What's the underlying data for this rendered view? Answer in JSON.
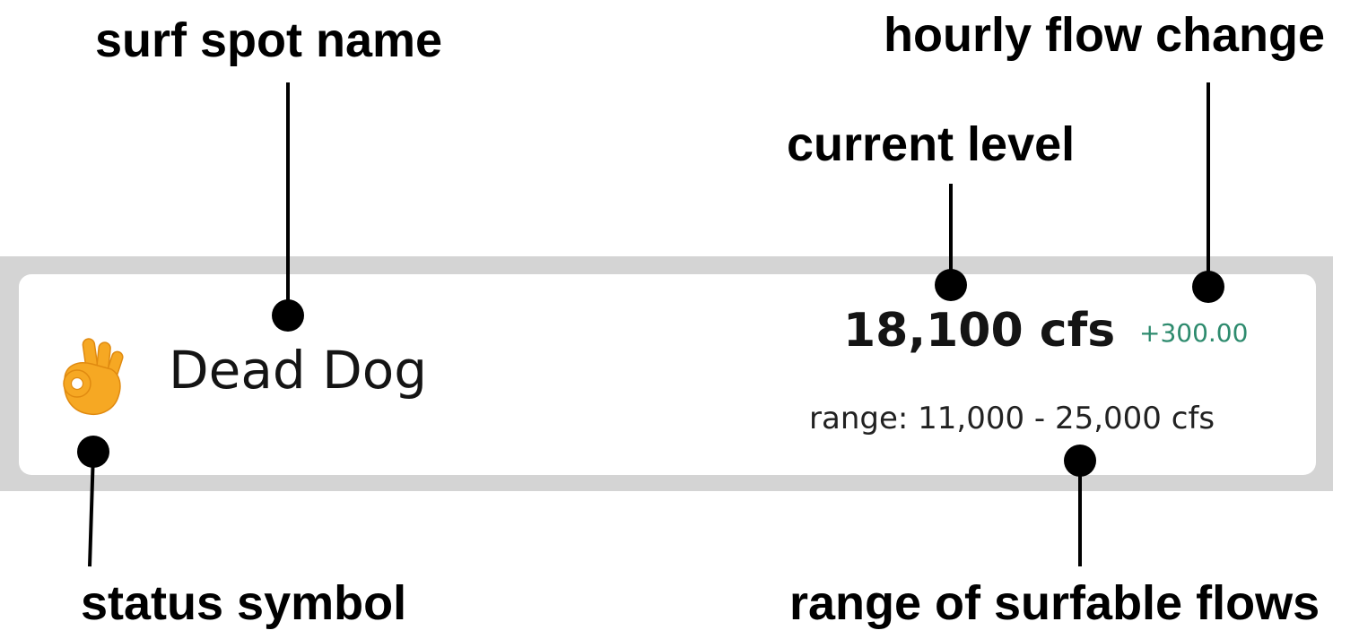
{
  "callouts": {
    "spot_name": "surf spot name",
    "flow_change": "hourly flow change",
    "current_level": "current level",
    "status_symbol": "status symbol",
    "range": "range of surfable flows"
  },
  "card": {
    "status_icon": "ok-hand-icon",
    "spot_name": "Dead Dog",
    "current_level": "18,100 cfs",
    "flow_change": "+300.00",
    "range": "range: 11,000 - 25,000 cfs"
  },
  "colors": {
    "frame": "#d4d4d4",
    "card_bg": "#ffffff",
    "change_positive": "#2e8b6e",
    "status_icon": "#f6a823",
    "leader": "#000000"
  }
}
